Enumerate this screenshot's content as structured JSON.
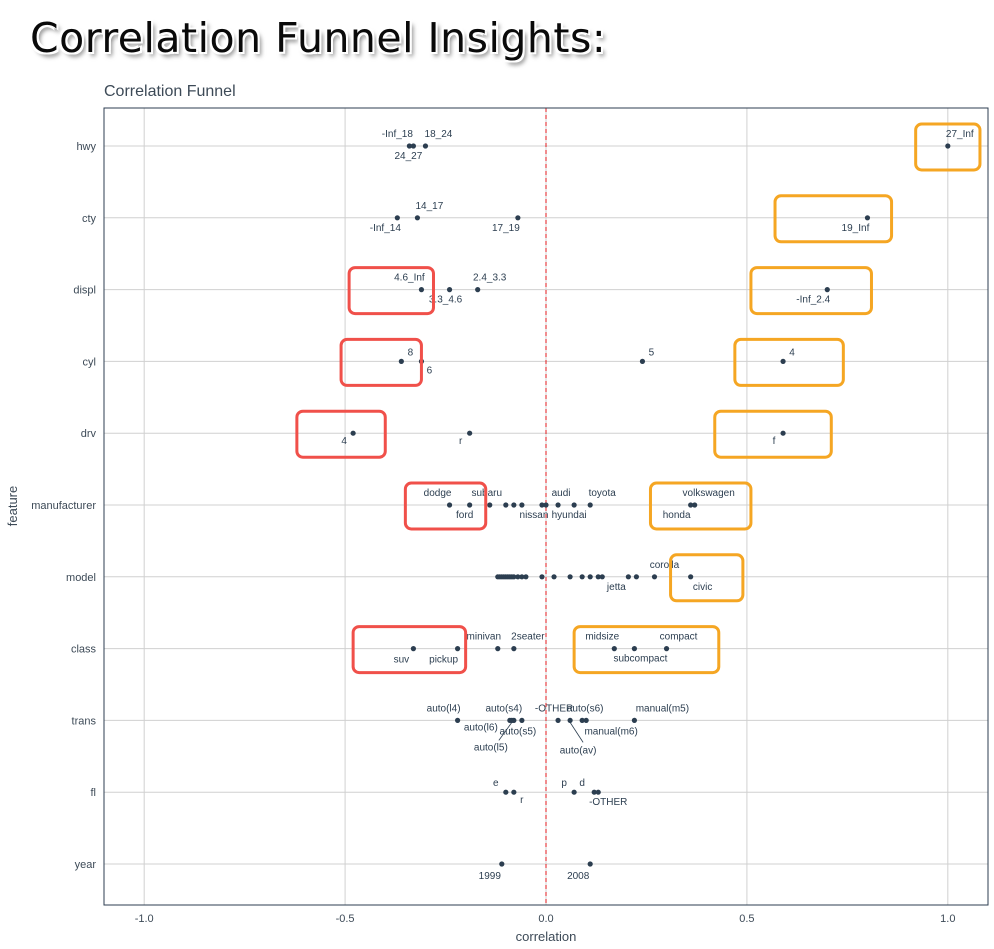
{
  "banner_title": "Correlation Funnel Insights:",
  "chart_data": {
    "type": "scatter",
    "title": "Correlation Funnel",
    "xlabel": "correlation",
    "ylabel": "feature",
    "xlim": [
      -1.1,
      1.1
    ],
    "xticks": [
      -1.0,
      -0.5,
      0.0,
      0.5,
      1.0
    ],
    "xtick_labels": [
      "-1.0",
      "-0.5",
      "0.0",
      "0.5",
      "1.0"
    ],
    "grid": true,
    "reference_line": 0,
    "colors": {
      "point": "#2c3e50",
      "reference": "#e31a1c",
      "grid": "#d0d0d0",
      "negative_box": "#f0504a",
      "positive_box": "#f5a623"
    },
    "features": [
      "hwy",
      "cty",
      "displ",
      "cyl",
      "drv",
      "manufacturer",
      "model",
      "class",
      "trans",
      "fl",
      "year"
    ],
    "points": [
      {
        "feature": "hwy",
        "label": "-Inf_18",
        "x": -0.34
      },
      {
        "feature": "hwy",
        "label": "24_27",
        "x": -0.33
      },
      {
        "feature": "hwy",
        "label": "18_24",
        "x": -0.3
      },
      {
        "feature": "hwy",
        "label": "27_Inf",
        "x": 1.0
      },
      {
        "feature": "cty",
        "label": "-Inf_14",
        "x": -0.37
      },
      {
        "feature": "cty",
        "label": "14_17",
        "x": -0.32
      },
      {
        "feature": "cty",
        "label": "17_19",
        "x": -0.07
      },
      {
        "feature": "cty",
        "label": "19_Inf",
        "x": 0.8
      },
      {
        "feature": "displ",
        "label": "4.6_Inf",
        "x": -0.31
      },
      {
        "feature": "displ",
        "label": "3.3_4.6",
        "x": -0.24
      },
      {
        "feature": "displ",
        "label": "2.4_3.3",
        "x": -0.17
      },
      {
        "feature": "displ",
        "label": "-Inf_2.4",
        "x": 0.7
      },
      {
        "feature": "cyl",
        "label": "8",
        "x": -0.36
      },
      {
        "feature": "cyl",
        "label": "6",
        "x": -0.31
      },
      {
        "feature": "cyl",
        "label": "5",
        "x": 0.24
      },
      {
        "feature": "cyl",
        "label": "4",
        "x": 0.59
      },
      {
        "feature": "drv",
        "label": "4",
        "x": -0.48
      },
      {
        "feature": "drv",
        "label": "r",
        "x": -0.19
      },
      {
        "feature": "drv",
        "label": "f",
        "x": 0.59
      },
      {
        "feature": "manufacturer",
        "label": "dodge",
        "x": -0.24
      },
      {
        "feature": "manufacturer",
        "label": "ford",
        "x": -0.19
      },
      {
        "feature": "manufacturer",
        "label": "subaru",
        "x": -0.14
      },
      {
        "feature": "manufacturer",
        "label": "",
        "x": -0.1
      },
      {
        "feature": "manufacturer",
        "label": "",
        "x": -0.08
      },
      {
        "feature": "manufacturer",
        "label": "",
        "x": -0.06
      },
      {
        "feature": "manufacturer",
        "label": "nissan",
        "x": -0.01
      },
      {
        "feature": "manufacturer",
        "label": "",
        "x": 0.0
      },
      {
        "feature": "manufacturer",
        "label": "audi",
        "x": 0.03
      },
      {
        "feature": "manufacturer",
        "label": "hyundai",
        "x": 0.07
      },
      {
        "feature": "manufacturer",
        "label": "toyota",
        "x": 0.11
      },
      {
        "feature": "manufacturer",
        "label": "honda",
        "x": 0.36
      },
      {
        "feature": "manufacturer",
        "label": "volkswagen",
        "x": 0.37
      },
      {
        "feature": "model",
        "label": "",
        "x": -0.12
      },
      {
        "feature": "model",
        "label": "",
        "x": -0.115
      },
      {
        "feature": "model",
        "label": "",
        "x": -0.11
      },
      {
        "feature": "model",
        "label": "",
        "x": -0.105
      },
      {
        "feature": "model",
        "label": "",
        "x": -0.1
      },
      {
        "feature": "model",
        "label": "",
        "x": -0.095
      },
      {
        "feature": "model",
        "label": "",
        "x": -0.09
      },
      {
        "feature": "model",
        "label": "",
        "x": -0.085
      },
      {
        "feature": "model",
        "label": "",
        "x": -0.08
      },
      {
        "feature": "model",
        "label": "",
        "x": -0.07
      },
      {
        "feature": "model",
        "label": "",
        "x": -0.06
      },
      {
        "feature": "model",
        "label": "",
        "x": -0.05
      },
      {
        "feature": "model",
        "label": "",
        "x": -0.01
      },
      {
        "feature": "model",
        "label": "",
        "x": 0.02
      },
      {
        "feature": "model",
        "label": "",
        "x": 0.06
      },
      {
        "feature": "model",
        "label": "",
        "x": 0.09
      },
      {
        "feature": "model",
        "label": "",
        "x": 0.11
      },
      {
        "feature": "model",
        "label": "",
        "x": 0.13
      },
      {
        "feature": "model",
        "label": "",
        "x": 0.14
      },
      {
        "feature": "model",
        "label": "jetta",
        "x": 0.205
      },
      {
        "feature": "model",
        "label": "",
        "x": 0.225
      },
      {
        "feature": "model",
        "label": "corolla",
        "x": 0.27
      },
      {
        "feature": "model",
        "label": "civic",
        "x": 0.36
      },
      {
        "feature": "class",
        "label": "suv",
        "x": -0.33
      },
      {
        "feature": "class",
        "label": "pickup",
        "x": -0.22
      },
      {
        "feature": "class",
        "label": "minivan",
        "x": -0.12
      },
      {
        "feature": "class",
        "label": "2seater",
        "x": -0.08
      },
      {
        "feature": "class",
        "label": "midsize",
        "x": 0.17
      },
      {
        "feature": "class",
        "label": "subcompact",
        "x": 0.22
      },
      {
        "feature": "class",
        "label": "compact",
        "x": 0.3
      },
      {
        "feature": "trans",
        "label": "auto(l4)",
        "x": -0.22
      },
      {
        "feature": "trans",
        "label": "auto(l6)",
        "x": -0.09
      },
      {
        "feature": "trans",
        "label": "auto(l5)",
        "x": -0.085
      },
      {
        "feature": "trans",
        "label": "auto(s4)",
        "x": -0.08
      },
      {
        "feature": "trans",
        "label": "auto(s5)",
        "x": -0.06
      },
      {
        "feature": "trans",
        "label": "-OTHER",
        "x": 0.03
      },
      {
        "feature": "trans",
        "label": "auto(av)",
        "x": 0.06
      },
      {
        "feature": "trans",
        "label": "manual(m6)",
        "x": 0.09
      },
      {
        "feature": "trans",
        "label": "auto(s6)",
        "x": 0.1
      },
      {
        "feature": "trans",
        "label": "manual(m5)",
        "x": 0.22
      },
      {
        "feature": "fl",
        "label": "e",
        "x": -0.1
      },
      {
        "feature": "fl",
        "label": "r",
        "x": -0.08
      },
      {
        "feature": "fl",
        "label": "p",
        "x": 0.07
      },
      {
        "feature": "fl",
        "label": "d",
        "x": 0.12
      },
      {
        "feature": "fl",
        "label": "-OTHER",
        "x": 0.13
      },
      {
        "feature": "year",
        "label": "1999",
        "x": -0.11
      },
      {
        "feature": "year",
        "label": "2008",
        "x": 0.11
      }
    ],
    "highlight_boxes": [
      {
        "kind": "negative",
        "feature": "displ",
        "x_from": -0.49,
        "x_to": -0.28
      },
      {
        "kind": "negative",
        "feature": "cyl",
        "x_from": -0.51,
        "x_to": -0.31
      },
      {
        "kind": "negative",
        "feature": "drv",
        "x_from": -0.62,
        "x_to": -0.4
      },
      {
        "kind": "negative",
        "feature": "manufacturer",
        "x_from": -0.35,
        "x_to": -0.15
      },
      {
        "kind": "negative",
        "feature": "class",
        "x_from": -0.48,
        "x_to": -0.2
      },
      {
        "kind": "positive",
        "feature": "hwy",
        "x_from": 0.92,
        "x_to": 1.08
      },
      {
        "kind": "positive",
        "feature": "cty",
        "x_from": 0.57,
        "x_to": 0.86
      },
      {
        "kind": "positive",
        "feature": "displ",
        "x_from": 0.51,
        "x_to": 0.81
      },
      {
        "kind": "positive",
        "feature": "cyl",
        "x_from": 0.47,
        "x_to": 0.74
      },
      {
        "kind": "positive",
        "feature": "drv",
        "x_from": 0.42,
        "x_to": 0.71
      },
      {
        "kind": "positive",
        "feature": "manufacturer",
        "x_from": 0.26,
        "x_to": 0.51
      },
      {
        "kind": "positive",
        "feature": "model",
        "x_from": 0.31,
        "x_to": 0.49
      },
      {
        "kind": "positive",
        "feature": "class",
        "x_from": 0.07,
        "x_to": 0.43
      }
    ]
  }
}
